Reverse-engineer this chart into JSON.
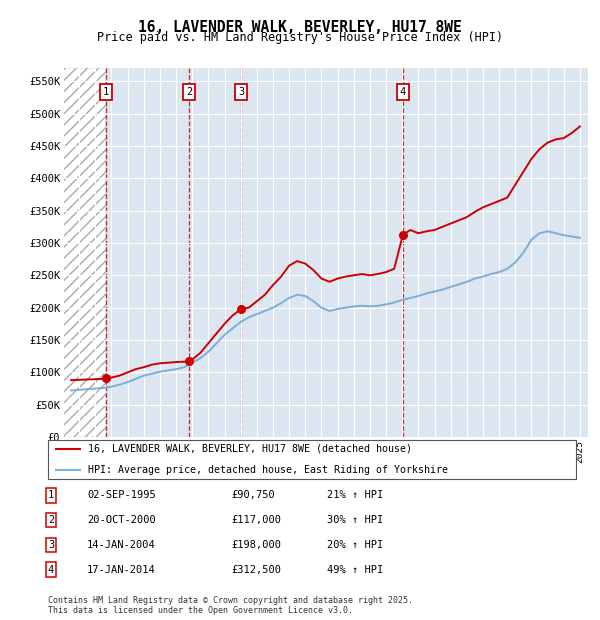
{
  "title": "16, LAVENDER WALK, BEVERLEY, HU17 8WE",
  "subtitle": "Price paid vs. HM Land Registry's House Price Index (HPI)",
  "ylabel_ticks": [
    "£0",
    "£50K",
    "£100K",
    "£150K",
    "£200K",
    "£250K",
    "£300K",
    "£350K",
    "£400K",
    "£450K",
    "£500K",
    "£550K"
  ],
  "ytick_values": [
    0,
    50000,
    100000,
    150000,
    200000,
    250000,
    300000,
    350000,
    400000,
    450000,
    500000,
    550000
  ],
  "ylim": [
    0,
    570000
  ],
  "xlim_start": 1993.0,
  "xlim_end": 2025.5,
  "background_color": "#dce6f1",
  "hatch_region_end": 1995.67,
  "sale_dates": [
    1995.67,
    2000.8,
    2004.04,
    2014.04
  ],
  "sale_prices": [
    90750,
    117000,
    198000,
    312500
  ],
  "sale_labels": [
    "1",
    "2",
    "3",
    "4"
  ],
  "sale_info": [
    {
      "label": "1",
      "date": "02-SEP-1995",
      "price": "£90,750",
      "hpi": "21% ↑ HPI"
    },
    {
      "label": "2",
      "date": "20-OCT-2000",
      "price": "£117,000",
      "hpi": "30% ↑ HPI"
    },
    {
      "label": "3",
      "date": "14-JAN-2004",
      "price": "£198,000",
      "hpi": "20% ↑ HPI"
    },
    {
      "label": "4",
      "date": "17-JAN-2014",
      "price": "£312,500",
      "hpi": "49% ↑ HPI"
    }
  ],
  "red_line_color": "#cc0000",
  "blue_line_color": "#7bafd4",
  "dashed_line_color": "#cc0000",
  "legend_label_red": "16, LAVENDER WALK, BEVERLEY, HU17 8WE (detached house)",
  "legend_label_blue": "HPI: Average price, detached house, East Riding of Yorkshire",
  "footer": "Contains HM Land Registry data © Crown copyright and database right 2025.\nThis data is licensed under the Open Government Licence v3.0.",
  "red_x": [
    1993.5,
    1994.0,
    1994.5,
    1995.0,
    1995.5,
    1995.67,
    1996.0,
    1996.5,
    1997.0,
    1997.5,
    1998.0,
    1998.5,
    1999.0,
    1999.5,
    2000.0,
    2000.5,
    2000.8,
    2001.0,
    2001.5,
    2002.0,
    2002.5,
    2003.0,
    2003.5,
    2004.04,
    2004.5,
    2005.0,
    2005.5,
    2006.0,
    2006.5,
    2007.0,
    2007.5,
    2008.0,
    2008.5,
    2009.0,
    2009.5,
    2010.0,
    2010.5,
    2011.0,
    2011.5,
    2012.0,
    2012.5,
    2013.0,
    2013.5,
    2014.04,
    2014.5,
    2015.0,
    2015.5,
    2016.0,
    2016.5,
    2017.0,
    2017.5,
    2018.0,
    2018.5,
    2019.0,
    2019.5,
    2020.0,
    2020.5,
    2021.0,
    2021.5,
    2022.0,
    2022.5,
    2023.0,
    2023.5,
    2024.0,
    2024.5,
    2025.0
  ],
  "red_y": [
    88000,
    88500,
    89000,
    89500,
    90000,
    90750,
    92000,
    95000,
    100000,
    105000,
    108000,
    112000,
    114000,
    115000,
    116000,
    116500,
    117000,
    120000,
    130000,
    145000,
    160000,
    175000,
    188000,
    198000,
    200000,
    210000,
    220000,
    235000,
    248000,
    265000,
    272000,
    268000,
    258000,
    245000,
    240000,
    245000,
    248000,
    250000,
    252000,
    250000,
    252000,
    255000,
    260000,
    312500,
    320000,
    315000,
    318000,
    320000,
    325000,
    330000,
    335000,
    340000,
    348000,
    355000,
    360000,
    365000,
    370000,
    390000,
    410000,
    430000,
    445000,
    455000,
    460000,
    462000,
    470000,
    480000
  ],
  "blue_x": [
    1993.5,
    1994.0,
    1994.5,
    1995.0,
    1995.5,
    1996.0,
    1996.5,
    1997.0,
    1997.5,
    1998.0,
    1998.5,
    1999.0,
    1999.5,
    2000.0,
    2000.5,
    2001.0,
    2001.5,
    2002.0,
    2002.5,
    2003.0,
    2003.5,
    2004.0,
    2004.5,
    2005.0,
    2005.5,
    2006.0,
    2006.5,
    2007.0,
    2007.5,
    2008.0,
    2008.5,
    2009.0,
    2009.5,
    2010.0,
    2010.5,
    2011.0,
    2011.5,
    2012.0,
    2012.5,
    2013.0,
    2013.5,
    2014.0,
    2014.5,
    2015.0,
    2015.5,
    2016.0,
    2016.5,
    2017.0,
    2017.5,
    2018.0,
    2018.5,
    2019.0,
    2019.5,
    2020.0,
    2020.5,
    2021.0,
    2021.5,
    2022.0,
    2022.5,
    2023.0,
    2023.5,
    2024.0,
    2024.5,
    2025.0
  ],
  "blue_y": [
    72000,
    73000,
    74000,
    75000,
    76000,
    78000,
    81000,
    85000,
    90000,
    95000,
    98000,
    101000,
    103000,
    105000,
    108000,
    115000,
    122000,
    132000,
    145000,
    158000,
    168000,
    178000,
    185000,
    190000,
    195000,
    200000,
    207000,
    215000,
    220000,
    218000,
    210000,
    200000,
    195000,
    198000,
    200000,
    202000,
    203000,
    202000,
    203000,
    205000,
    208000,
    212000,
    215000,
    218000,
    222000,
    225000,
    228000,
    232000,
    236000,
    240000,
    245000,
    248000,
    252000,
    255000,
    260000,
    270000,
    285000,
    305000,
    315000,
    318000,
    315000,
    312000,
    310000,
    308000
  ]
}
